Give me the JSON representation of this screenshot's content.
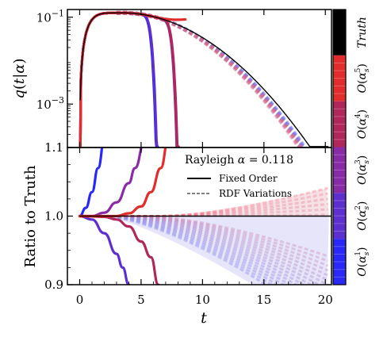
{
  "chart_data": {
    "type": "line",
    "x_axis": {
      "label": "t",
      "range": [
        -1,
        20.5
      ],
      "ticks": [
        "0",
        "5",
        "10",
        "15",
        "20"
      ]
    },
    "top_panel": {
      "ylabel": "q(t|α)",
      "scale": "log",
      "yrange": [
        0.0001,
        0.15
      ],
      "ticks": [
        "10^-3",
        "10^-1"
      ],
      "series": [
        {
          "name": "Truth",
          "color": "#000000",
          "style": "solid"
        },
        {
          "name": "O(α_s^1)",
          "color": "#2a28f6",
          "style": "solid",
          "diverges_at_t": 6.3
        },
        {
          "name": "O(α_s^2)",
          "color": "#5e2fcf",
          "style": "solid",
          "diverges_at_t": 6.3
        },
        {
          "name": "O(α_s^3)",
          "color": "#8a2aa6",
          "style": "solid",
          "diverges_at_t": 8.0
        },
        {
          "name": "O(α_s^4)",
          "color": "#b0275a",
          "style": "solid",
          "diverges_at_t": 8.0
        },
        {
          "name": "O(α_s^5)",
          "color": "#e22d2d",
          "style": "solid",
          "diverges_at_t": 8.6
        }
      ]
    },
    "bottom_panel": {
      "ylabel": "Ratio to Truth",
      "yrange": [
        0.9,
        1.1
      ],
      "ticks": [
        "0.9",
        "1.0",
        "1.1"
      ],
      "legend_title": "Rayleigh α = 0.118",
      "legend": [
        {
          "label": "Fixed Order",
          "style": "solid"
        },
        {
          "label": "RDF Variations",
          "style": "dashed"
        }
      ],
      "fixed_order_ratio": [
        {
          "series": "O(α_s^1)",
          "direction": "up",
          "t": [
            0,
            0.5,
            1,
            1.5,
            2.0
          ],
          "ratio": [
            1.0,
            1.012,
            1.035,
            1.07,
            1.11
          ]
        },
        {
          "series": "O(α_s^2)",
          "direction": "down",
          "t": [
            0,
            1,
            2,
            3,
            3.5,
            4.0
          ],
          "ratio": [
            1.0,
            0.995,
            0.975,
            0.945,
            0.925,
            0.9
          ]
        },
        {
          "series": "O(α_s^3)",
          "direction": "up",
          "t": [
            0,
            1,
            2,
            3,
            4,
            4.5,
            5.3
          ],
          "ratio": [
            1.0,
            1.0,
            1.005,
            1.02,
            1.048,
            1.07,
            1.11
          ]
        },
        {
          "series": "O(α_s^4)",
          "direction": "down",
          "t": [
            0,
            2,
            3,
            4,
            5,
            5.8,
            6.4
          ],
          "ratio": [
            1.0,
            0.999,
            0.995,
            0.985,
            0.963,
            0.94,
            0.9
          ]
        },
        {
          "series": "O(α_s^5)",
          "direction": "up",
          "t": [
            0,
            3,
            4,
            5,
            5.8,
            6.6,
            7.2
          ],
          "ratio": [
            1.0,
            1.0,
            1.004,
            1.014,
            1.035,
            1.07,
            1.11
          ]
        }
      ],
      "rdf_band": {
        "upper_at_t20": 1.04,
        "lower_min": 0.9,
        "spread_starts_t": 2
      }
    },
    "colorbar": {
      "labels": [
        "O(α_s^1)",
        "O(α_s^2)",
        "O(α_s^3)",
        "O(α_s^4)",
        "O(α_s^5)",
        "Truth"
      ],
      "colors": [
        "#2a28f6",
        "#5e2fcf",
        "#8a2aa6",
        "#b0275a",
        "#e22d2d",
        "#000000"
      ]
    }
  }
}
